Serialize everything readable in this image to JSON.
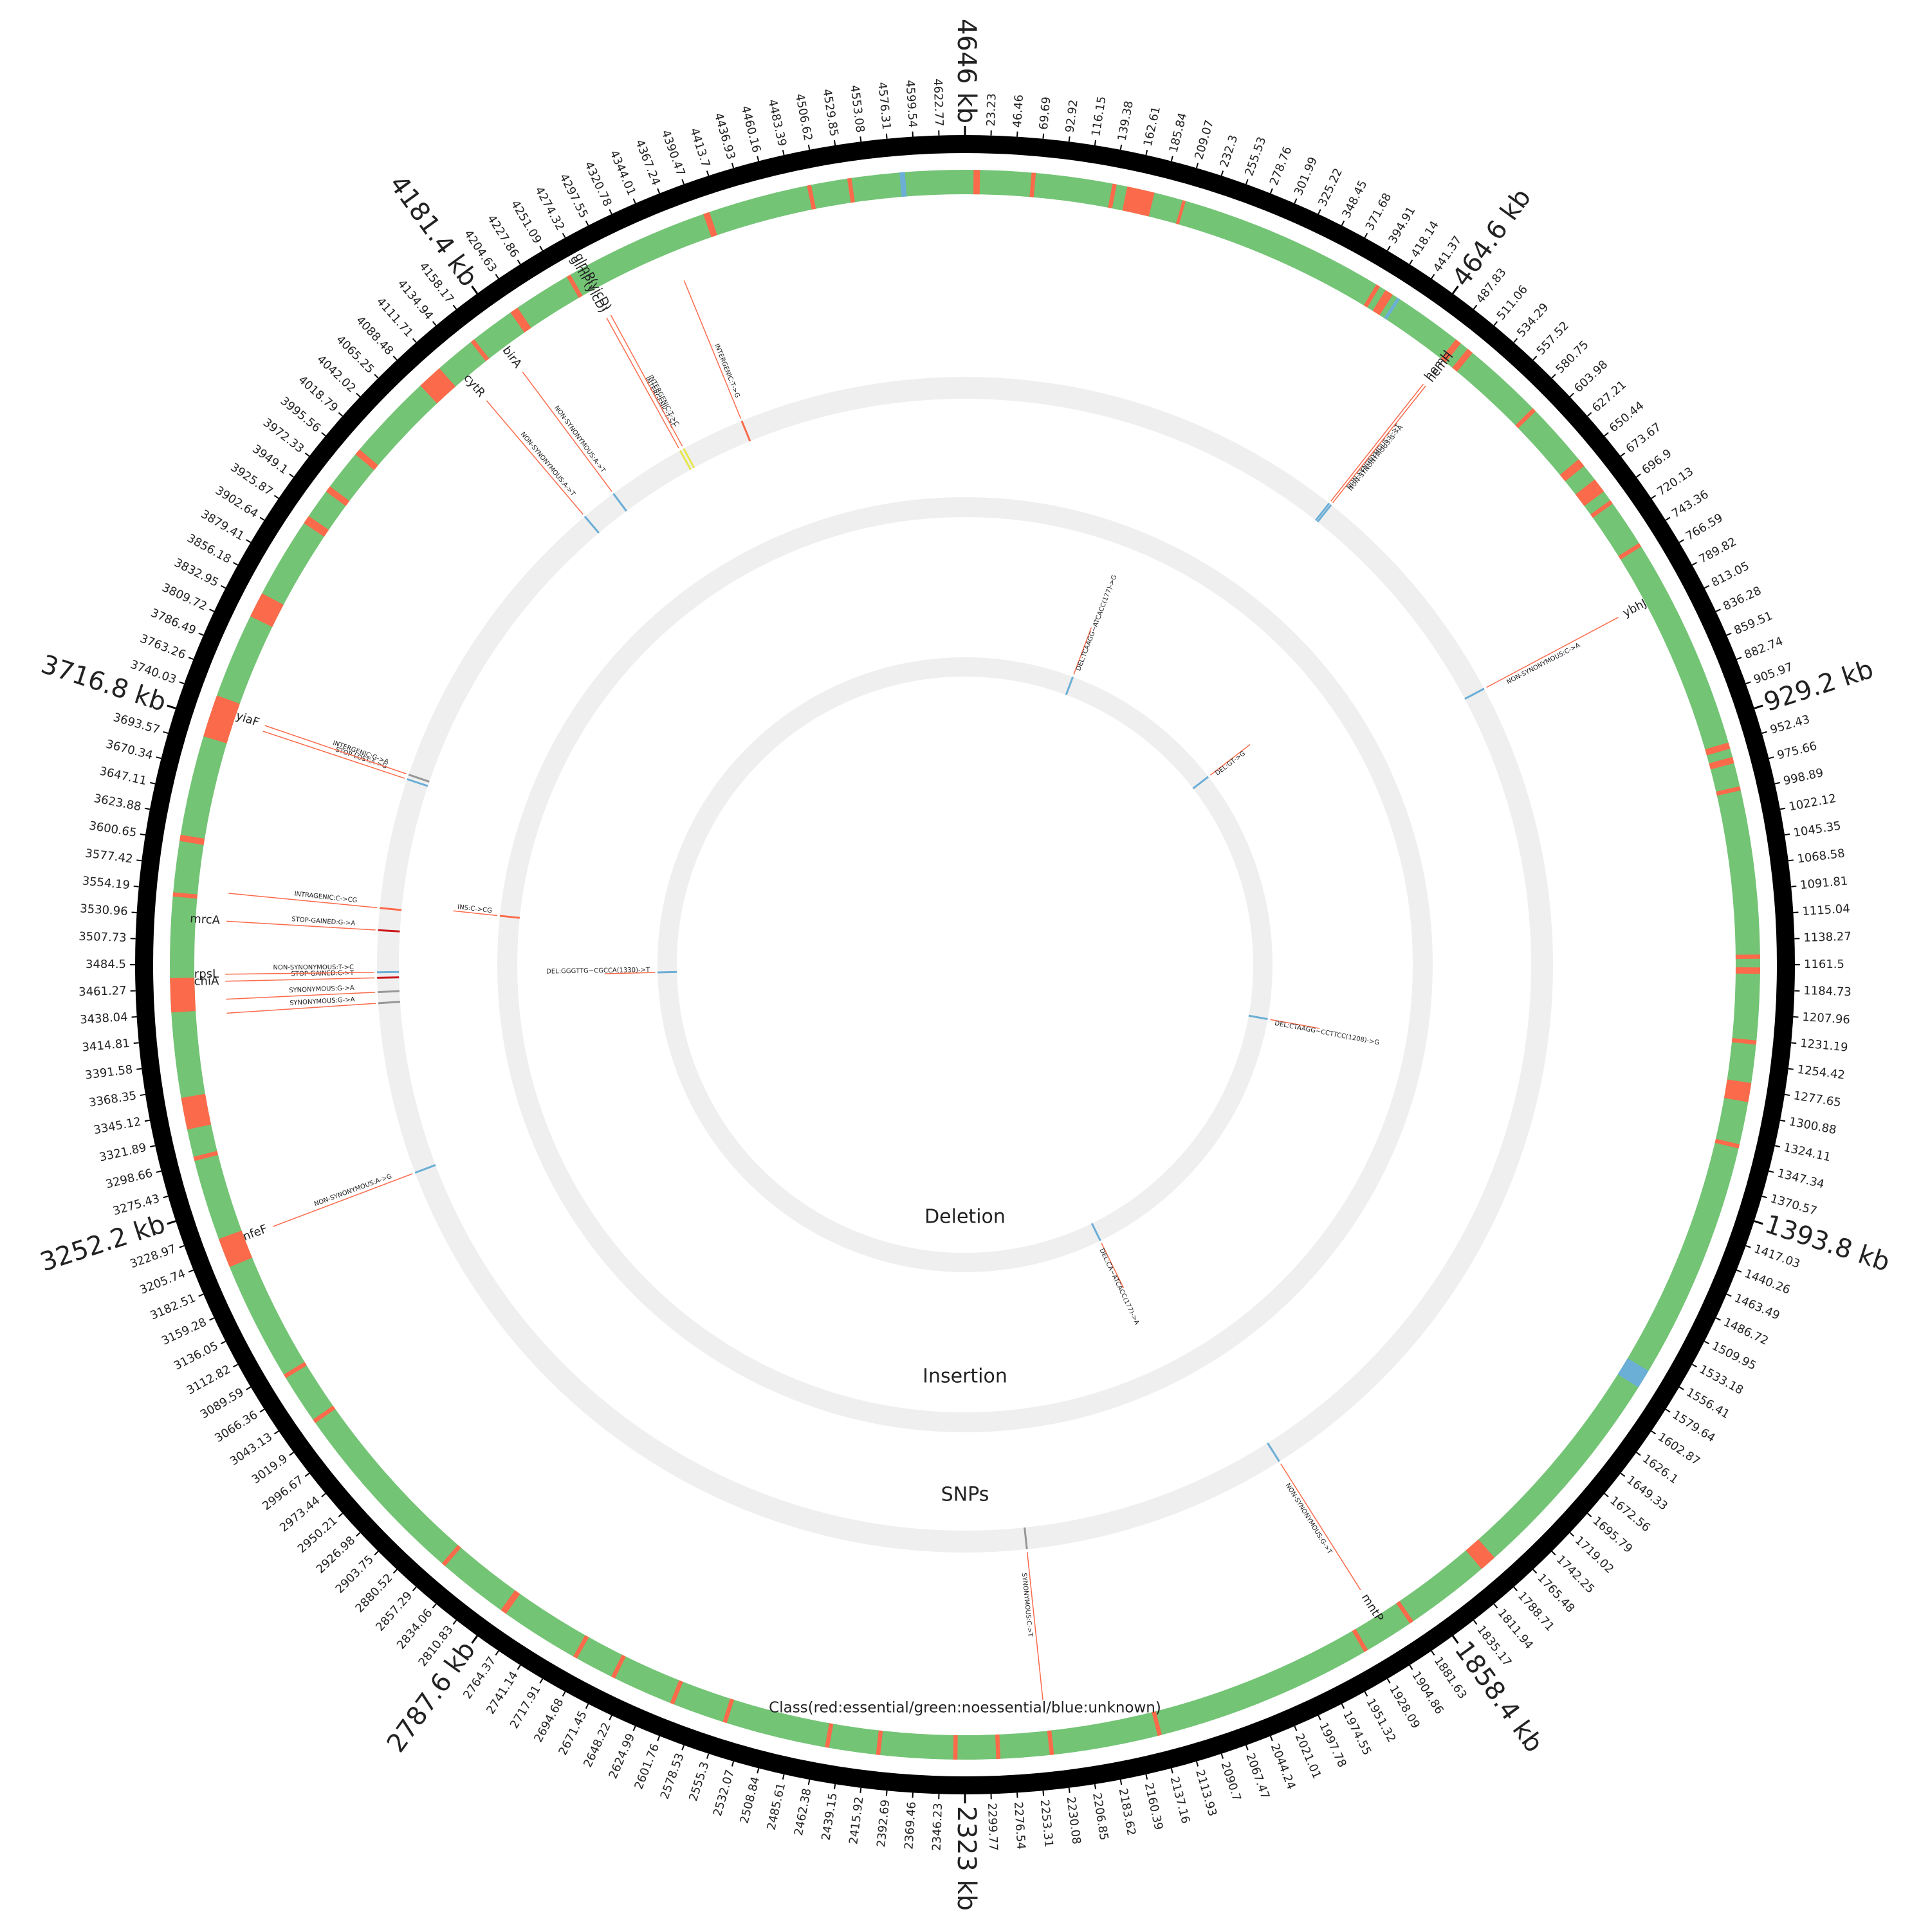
{
  "chart_data": {
    "type": "circos",
    "xlim": [
      0,
      4646
    ],
    "xticks": [
      23.23,
      46.46,
      69.69,
      92.92,
      116.15,
      139.38,
      162.61,
      185.84,
      209.07,
      232.3,
      255.53,
      278.76,
      301.99,
      325.22,
      348.45,
      371.68,
      394.91,
      418.14,
      441.37,
      {
        "value": 464.6,
        "label": "464.6 kb"
      },
      487.83,
      511.06,
      534.29,
      557.52,
      580.75,
      603.98,
      627.21,
      650.44,
      673.67,
      696.9,
      720.13,
      743.36,
      766.59,
      789.82,
      813.05,
      836.28,
      859.51,
      882.74,
      905.97,
      {
        "value": 929.2,
        "label": "929.2 kb"
      },
      952.43,
      975.66,
      998.89,
      1022.12,
      1045.35,
      1068.58,
      1091.81,
      1115.04,
      1138.27,
      1161.5,
      1184.73,
      1207.96,
      1231.19,
      1254.42,
      1277.65,
      1300.88,
      1324.11,
      1347.34,
      1370.57,
      {
        "value": 1393.8,
        "label": "1393.8 kb"
      },
      1417.03,
      1440.26,
      1463.49,
      1486.72,
      1509.95,
      1533.18,
      1556.41,
      1579.64,
      1602.87,
      1626.1,
      1649.33,
      1672.56,
      1695.79,
      1719.02,
      1742.25,
      1765.48,
      1788.71,
      1811.94,
      1835.17,
      {
        "value": 1858.4,
        "label": "1858.4 kb"
      },
      1881.63,
      1904.86,
      1928.09,
      1951.32,
      1974.55,
      1997.78,
      2021.01,
      2044.24,
      2067.47,
      2090.7,
      2113.93,
      2137.16,
      2160.39,
      2183.62,
      2206.85,
      2230.08,
      2253.31,
      2276.54,
      2299.77,
      {
        "value": 2323,
        "label": "2323 kb"
      },
      2346.23,
      2369.46,
      2392.69,
      2415.92,
      2439.15,
      2462.38,
      2485.61,
      2508.84,
      2532.07,
      2555.3,
      2578.53,
      2601.76,
      2624.99,
      2648.22,
      2671.45,
      2694.68,
      2717.91,
      2741.14,
      2764.37,
      {
        "value": 2787.6,
        "label": "2787.6 kb"
      },
      2810.83,
      2834.06,
      2857.29,
      2880.52,
      2903.75,
      2926.98,
      2950.21,
      2973.44,
      2996.67,
      3019.9,
      3043.13,
      3066.36,
      3089.59,
      3112.82,
      3136.05,
      3159.28,
      3182.51,
      3205.74,
      3228.97,
      {
        "value": 3252.2,
        "label": "3252.2 kb"
      },
      3275.43,
      3298.66,
      3321.89,
      3345.12,
      3368.35,
      3391.58,
      3414.81,
      3438.04,
      3461.27,
      3484.5,
      3507.73,
      3530.96,
      3554.19,
      3577.42,
      3600.65,
      3623.88,
      3647.11,
      3670.34,
      3693.57,
      {
        "value": 3716.8,
        "label": "3716.8 kb"
      },
      3740.03,
      3763.26,
      3786.49,
      3809.72,
      3832.95,
      3856.18,
      3879.41,
      3902.64,
      3925.87,
      3949.1,
      3972.33,
      3995.56,
      4018.79,
      4042.02,
      4065.25,
      4088.48,
      4111.71,
      4134.94,
      4158.17,
      {
        "value": 4181.4,
        "label": "4181.4 kb"
      },
      4204.63,
      4227.86,
      4251.09,
      4274.32,
      4297.55,
      4320.78,
      4344.01,
      4367.24,
      4390.47,
      4413.7,
      4436.93,
      4460.16,
      4483.39,
      4506.62,
      4529.85,
      4553.08,
      4576.31,
      4599.54,
      4622.77,
      {
        "value": 4646,
        "label": "4646 kb"
      }
    ],
    "class_track": {
      "label": "Class(red:essential/green:noessential/blue:unknown)",
      "base_color": "#74c476",
      "essential_color": "#fb6a4a",
      "unknown_color": "#6baed6",
      "essential": [
        [
          8,
          14
        ],
        [
          62,
          66
        ],
        [
          138,
          142
        ],
        [
          152,
          178
        ],
        [
          205,
          208
        ],
        [
          402,
          406
        ],
        [
          412,
          420
        ],
        [
          492,
          498
        ],
        [
          506,
          512
        ],
        [
          588,
          592
        ],
        [
          652,
          660
        ],
        [
          676,
          690
        ],
        [
          700,
          704
        ],
        [
          748,
          752
        ],
        [
          952,
          958
        ],
        [
          966,
          972
        ],
        [
          994,
          998
        ],
        [
          1152,
          1156
        ],
        [
          1164,
          1170
        ],
        [
          1232,
          1236
        ],
        [
          1272,
          1290
        ],
        [
          1330,
          1334
        ],
        [
          1784,
          1800
        ],
        [
          1880,
          1884
        ],
        [
          1930,
          1934
        ],
        [
          2138,
          2142
        ],
        [
          2240,
          2244
        ],
        [
          2290,
          2294
        ],
        [
          2330,
          2334
        ],
        [
          2402,
          2406
        ],
        [
          2450,
          2454
        ],
        [
          2548,
          2552
        ],
        [
          2600,
          2604
        ],
        [
          2660,
          2664
        ],
        [
          2700,
          2704
        ],
        [
          2778,
          2784
        ],
        [
          2850,
          2854
        ],
        [
          3030,
          3034
        ],
        [
          3080,
          3084
        ],
        [
          3196,
          3224
        ],
        [
          3300,
          3304
        ],
        [
          3330,
          3360
        ],
        [
          3440,
          3472
        ],
        [
          3548,
          3552
        ],
        [
          3600,
          3606
        ],
        [
          3700,
          3740
        ],
        [
          3820,
          3844
        ],
        [
          3920,
          3928
        ],
        [
          3956,
          3962
        ],
        [
          4000,
          4006
        ],
        [
          4088,
          4112
        ],
        [
          4150,
          4154
        ],
        [
          4196,
          4204
        ],
        [
          4258,
          4262
        ],
        [
          4398,
          4404
        ],
        [
          4498,
          4502
        ],
        [
          4536,
          4540
        ]
      ],
      "unknown": [
        [
          425,
          428
        ],
        [
          1558,
          1576
        ],
        [
          4585,
          4590
        ]
      ]
    },
    "tracks": [
      {
        "name": "SNPs",
        "color": "#efefef",
        "items": [
          {
            "kb": 494,
            "annotation": "NON-SYNONYMOUS:C->T",
            "gene": "hemH",
            "color": "#6baed6"
          },
          {
            "kb": 497,
            "annotation": "NON-SYNONYMOUS:G->A",
            "gene": "hemH",
            "color": "#6baed6"
          },
          {
            "kb": 800,
            "annotation": "NON-SYNONYMOUS:C->A",
            "gene": "ybhJ",
            "color": "#6baed6"
          },
          {
            "kb": 1906,
            "annotation": "NON-SYNONYMOUS:G->T",
            "gene": "mntP",
            "color": "#6baed6"
          },
          {
            "kb": 2245,
            "annotation": "SYNONYMOUS:C->T",
            "color": "#969696"
          },
          {
            "kb": 3217,
            "annotation": "NON-SYNONYMOUS:A->G",
            "gene": "nfeF",
            "color": "#6baed6"
          },
          {
            "kb": 3436,
            "annotation": "SYNONYMOUS:G->A",
            "color": "#969696"
          },
          {
            "kb": 3450,
            "annotation": "SYNONYMOUS:G->A",
            "color": "#969696"
          },
          {
            "kb": 3468,
            "annotation": "STOP-GAINED:C->T",
            "gene": "chiA",
            "color": "#cb181d"
          },
          {
            "kb": 3475,
            "annotation": "NON-SYNONYMOUS:T->C",
            "gene": "rpsL",
            "color": "#6baed6"
          },
          {
            "kb": 3528,
            "annotation": "STOP-GAINED:G->A",
            "gene": "mrcA",
            "color": "#cb181d"
          },
          {
            "kb": 3556,
            "annotation": "INTRAGENIC:C->CG",
            "color": "#fb6a4a"
          },
          {
            "kb": 3722,
            "annotation": "STOP-LOST:A->G",
            "color": "#6baed6"
          },
          {
            "kb": 3728,
            "annotation": "INTERGENIC:G->A",
            "gene": "yiaF",
            "color": "#969696"
          },
          {
            "kb": 4126,
            "annotation": "NON-SYNONYMOUS:A->T",
            "gene": "cytR",
            "color": "#6baed6"
          },
          {
            "kb": 4172,
            "annotation": "NON-SYNONYMOUS:A->T",
            "gene": "birA",
            "color": "#6baed6"
          },
          {
            "kb": 4272,
            "annotation": "INTERGENIC:T->C",
            "gene": "glmP(yicD)",
            "color": "#e6e64c"
          },
          {
            "kb": 4277,
            "annotation": "INTERGENIC:T->C",
            "gene": "glmP(yicD)",
            "color": "#e6e64c"
          },
          {
            "kb": 4358,
            "annotation": "INTERGENIC:T->G",
            "color": "#fb6a4a"
          }
        ]
      },
      {
        "name": "Insertion",
        "color": "#efefef",
        "items": [
          {
            "kb": 3562,
            "annotation": "INS:C->CG",
            "color": "#fb6a4a"
          }
        ]
      },
      {
        "name": "Deletion",
        "color": "#efefef",
        "items": [
          {
            "kb": 265,
            "annotation": "DEL:TCAAGG~ATCACC(177)->G",
            "color": "#6baed6"
          },
          {
            "kb": 675,
            "annotation": "DEL:GT->G",
            "color": "#6baed6"
          },
          {
            "kb": 1293,
            "annotation": "DEL:CTAAGG~CCTTCC(1208)->G",
            "color": "#6baed6"
          },
          {
            "kb": 1986,
            "annotation": "DEL:CA~ATCACC(177)->A",
            "color": "#6baed6"
          },
          {
            "kb": 3466,
            "annotation": "DEL:GGGTTG~CGCCA(1330)->T",
            "color": "#6baed6"
          }
        ]
      }
    ]
  }
}
